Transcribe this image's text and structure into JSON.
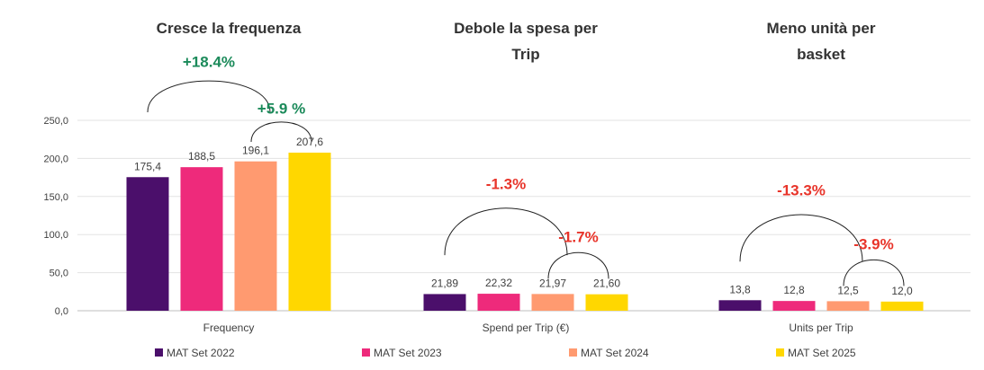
{
  "chart_data": {
    "type": "bar",
    "title": "",
    "xlabel": "",
    "ylabel": "",
    "ylim": [
      0,
      250
    ],
    "yticks": [
      "0,0",
      "50,0",
      "100,0",
      "150,0",
      "200,0",
      "250,0"
    ],
    "grid": true,
    "legend_position": "bottom",
    "categories": [
      "Frequency",
      "Spend per Trip (€)",
      "Units per Trip"
    ],
    "panel_titles": [
      [
        "Cresce la frequenza"
      ],
      [
        "Debole la spesa per",
        "Trip"
      ],
      [
        "Meno unità per",
        "basket"
      ]
    ],
    "series": [
      {
        "name": "MAT Set 2022",
        "color": "#4B0F6B",
        "values": [
          175.4,
          21.89,
          13.8
        ],
        "labels": [
          "175,4",
          "21,89",
          "13,8"
        ]
      },
      {
        "name": "MAT Set 2023",
        "color": "#EE2A7B",
        "values": [
          188.5,
          22.32,
          12.8
        ],
        "labels": [
          "188,5",
          "22,32",
          "12,8"
        ]
      },
      {
        "name": "MAT Set 2024",
        "color": "#FF9A70",
        "values": [
          196.1,
          21.97,
          12.5
        ],
        "labels": [
          "196,1",
          "21,97",
          "12,5"
        ]
      },
      {
        "name": "MAT Set 2025",
        "color": "#FFD700",
        "values": [
          207.6,
          21.6,
          12.0
        ],
        "labels": [
          "207,6",
          "21,60",
          "12,0"
        ]
      }
    ],
    "annotations": [
      {
        "group": 0,
        "from": 0,
        "to": 3,
        "text": "+18.4%",
        "color": "#1B8A5A"
      },
      {
        "group": 0,
        "from": 2,
        "to": 3,
        "text": "+5.9 %",
        "color": "#1B8A5A"
      },
      {
        "group": 1,
        "from": 0,
        "to": 3,
        "text": "-1.3%",
        "color": "#E8342A"
      },
      {
        "group": 1,
        "from": 2,
        "to": 3,
        "text": "-1.7%",
        "color": "#E8342A"
      },
      {
        "group": 2,
        "from": 0,
        "to": 3,
        "text": "-13.3%",
        "color": "#E8342A"
      },
      {
        "group": 2,
        "from": 2,
        "to": 3,
        "text": "-3.9%",
        "color": "#E8342A"
      }
    ]
  }
}
